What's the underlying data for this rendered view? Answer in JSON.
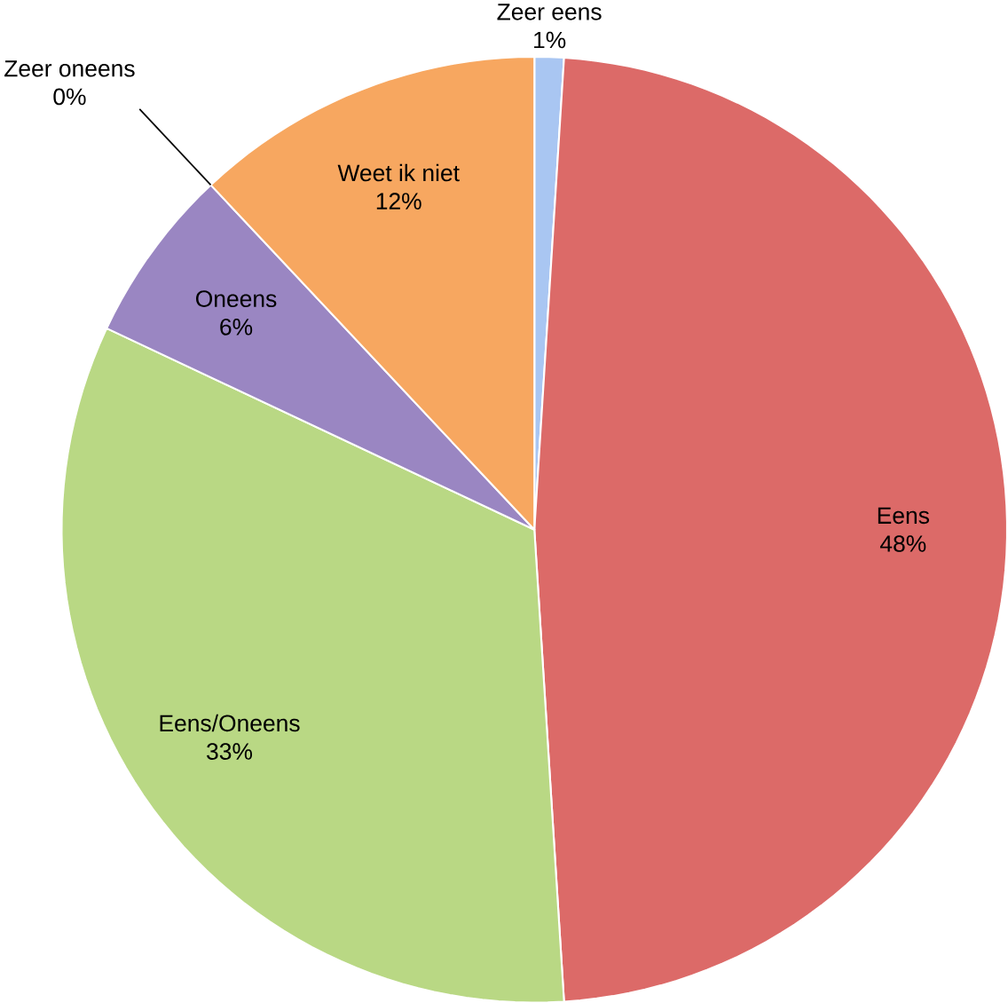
{
  "chart_data": {
    "type": "pie",
    "categories": [
      "Zeer eens",
      "Eens",
      "Eens/Oneens",
      "Oneens",
      "Zeer oneens",
      "Weet ik niet"
    ],
    "values": [
      1,
      48,
      33,
      6,
      0,
      12
    ],
    "value_labels": [
      "1%",
      "48%",
      "33%",
      "6%",
      "0%",
      "12%"
    ],
    "colors": [
      "#a9c6f2",
      "#dc6a68",
      "#b9d884",
      "#9a86c2",
      "#8064a2",
      "#f7a760"
    ]
  }
}
